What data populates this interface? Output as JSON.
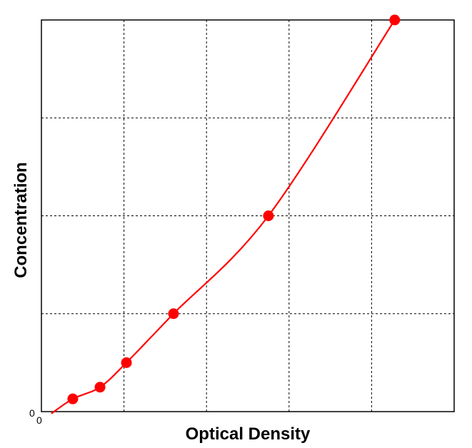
{
  "chart_data": {
    "type": "line",
    "title": "",
    "xlabel": "Optical Density",
    "ylabel": "Concentration",
    "x_tick_labels": [
      "0"
    ],
    "y_tick_labels": [
      "0"
    ],
    "xlim": [
      0,
      5
    ],
    "ylim": [
      0,
      4
    ],
    "grid": true,
    "grid_style": "dashed",
    "legend": "none",
    "series": [
      {
        "color": "#ff0000",
        "marker": "circle",
        "points": [
          {
            "x": 0.38,
            "y": 0.13
          },
          {
            "x": 0.71,
            "y": 0.25
          },
          {
            "x": 1.03,
            "y": 0.5
          },
          {
            "x": 1.6,
            "y": 1.0
          },
          {
            "x": 2.75,
            "y": 2.0
          },
          {
            "x": 4.28,
            "y": 4.0
          }
        ]
      }
    ]
  }
}
